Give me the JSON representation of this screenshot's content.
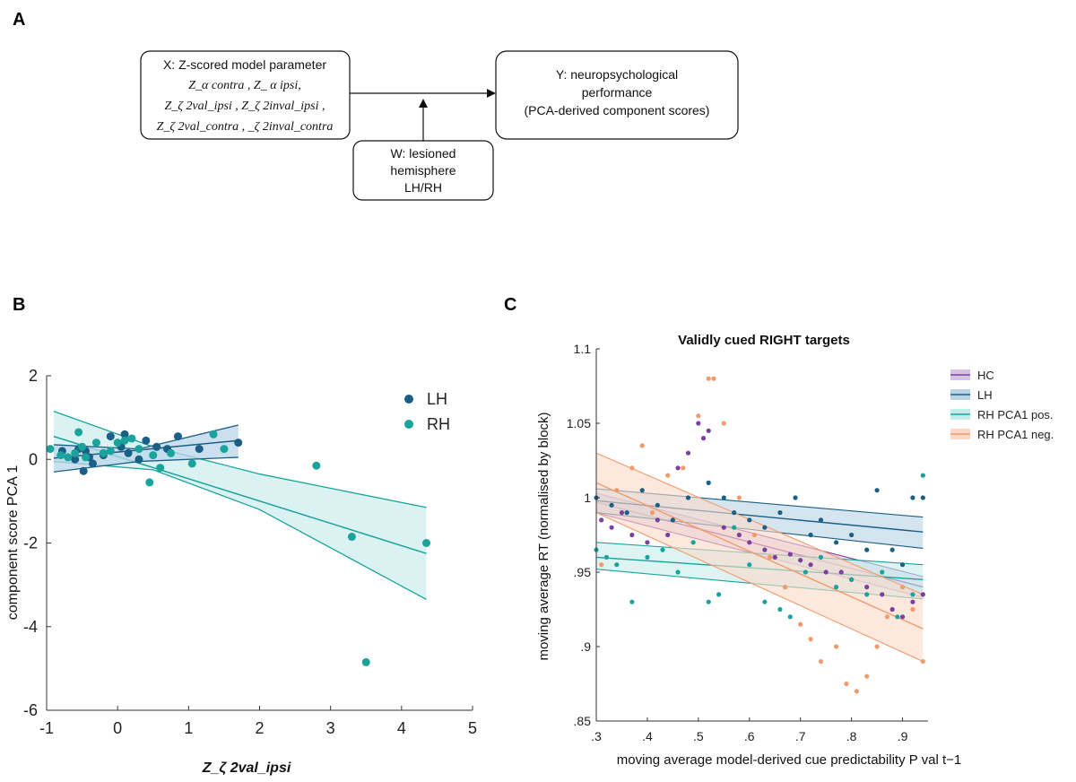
{
  "panel_labels": [
    "A",
    "B",
    "C"
  ],
  "diagram": {
    "box_x": {
      "line1": "X: Z-scored model parameter",
      "line2": "Z_α contra , Z_ α ipsi,",
      "line3": "Z_ζ 2val_ipsi , Z_ζ 2inval_ipsi ,",
      "line4": "Z_ζ 2val_contra , _ζ 2inval_contra"
    },
    "box_y": {
      "line1": "Y: neuropsychological",
      "line2": "performance",
      "line3": "(PCA-derived component scores)"
    },
    "box_w": {
      "line1": "W: lesioned",
      "line2": "hemisphere",
      "line3": "LH/RH"
    }
  },
  "chart_data": [
    {
      "type": "scatter",
      "panel": "B",
      "title": "",
      "xlabel": "Z_ζ 2val_ipsi",
      "ylabel": "component score PCA 1",
      "xlim": [
        -1,
        5
      ],
      "ylim": [
        -6,
        2
      ],
      "xticks": [
        -1,
        0,
        1,
        2,
        3,
        4,
        5
      ],
      "yticks": [
        2,
        0,
        -2,
        -4,
        -6
      ],
      "xtick_labels": [
        "-1",
        "0",
        "1",
        "2",
        "3",
        "4",
        "5"
      ],
      "ytick_labels": [
        "2",
        "0",
        "-2",
        "-4",
        "-6"
      ],
      "grid": false,
      "legend_position": "top-right",
      "colors": {
        "LH": "#1b5e86",
        "RH": "#1aa39a",
        "LH_band": "#b9d6e8",
        "RH_band": "#cfeeed"
      },
      "series": [
        {
          "name": "LH",
          "x": [
            -0.78,
            -0.6,
            -0.55,
            -0.48,
            -0.45,
            -0.4,
            -0.35,
            -0.2,
            -0.1,
            0.05,
            0.1,
            0.15,
            0.3,
            0.4,
            0.55,
            0.7,
            0.85,
            1.15,
            1.7
          ],
          "y": [
            0.2,
            0.0,
            0.25,
            -0.28,
            0.2,
            0.05,
            -0.1,
            0.1,
            0.55,
            0.3,
            0.6,
            0.15,
            0.0,
            0.45,
            0.3,
            0.25,
            0.55,
            0.25,
            0.4
          ],
          "fit": {
            "x": [
              -0.9,
              1.7
            ],
            "y": [
              0.03,
              0.45
            ]
          },
          "band": {
            "x": [
              -0.9,
              0.3,
              1.7
            ],
            "upper": [
              0.35,
              0.25,
              0.82
            ],
            "lower": [
              -0.3,
              -0.05,
              0.05
            ]
          }
        },
        {
          "name": "RH",
          "x": [
            -0.95,
            -0.8,
            -0.7,
            -0.6,
            -0.55,
            -0.5,
            -0.45,
            -0.3,
            -0.2,
            -0.1,
            0.0,
            0.1,
            0.2,
            0.3,
            0.5,
            0.45,
            0.6,
            0.75,
            1.05,
            1.35,
            1.5,
            2.8,
            3.3,
            3.5,
            4.35
          ],
          "y": [
            0.25,
            0.1,
            0.05,
            0.15,
            0.65,
            0.3,
            0.05,
            0.4,
            0.15,
            0.2,
            0.4,
            0.45,
            0.5,
            0.25,
            0.1,
            -0.55,
            -0.2,
            0.15,
            -0.1,
            0.6,
            0.25,
            -0.15,
            -1.85,
            -4.85,
            -2.0
          ],
          "fit": {
            "x": [
              -0.9,
              4.35
            ],
            "y": [
              0.55,
              -2.25
            ]
          },
          "band": {
            "x": [
              -0.9,
              0.5,
              2.0,
              4.35
            ],
            "upper": [
              1.15,
              0.3,
              -0.35,
              -1.15
            ],
            "lower": [
              -0.05,
              -0.25,
              -1.2,
              -3.35
            ]
          }
        }
      ]
    },
    {
      "type": "scatter",
      "panel": "C",
      "title": "Validly cued RIGHT targets",
      "xlabel": "moving average model-derived cue predictability P val t−1",
      "ylabel": "moving average RT (normalised by block)",
      "xlim": [
        0.3,
        0.95
      ],
      "ylim": [
        0.85,
        1.1
      ],
      "xticks": [
        0.3,
        0.4,
        0.5,
        0.6,
        0.7,
        0.8,
        0.9
      ],
      "yticks": [
        1.1,
        1.05,
        1,
        0.95,
        0.9,
        0.85
      ],
      "xtick_labels": [
        ".3",
        ".4",
        ".5",
        ".6",
        ".7",
        ".8",
        ".9"
      ],
      "ytick_labels": [
        "1.1",
        "1.05",
        "1",
        ".95",
        ".9",
        ".85"
      ],
      "grid": false,
      "legend_position": "right",
      "series": [
        {
          "name": "HC",
          "color": "#7b3fa0",
          "band_color": "#d5c3e3",
          "x": [
            0.31,
            0.33,
            0.35,
            0.37,
            0.4,
            0.42,
            0.44,
            0.46,
            0.48,
            0.5,
            0.51,
            0.52,
            0.55,
            0.58,
            0.6,
            0.63,
            0.65,
            0.68,
            0.7,
            0.72,
            0.75,
            0.78,
            0.8,
            0.83,
            0.86,
            0.88,
            0.9,
            0.92,
            0.94
          ],
          "y": [
            0.985,
            0.98,
            0.99,
            0.975,
            0.97,
            0.985,
            0.975,
            1.02,
            1.03,
            1.05,
            1.04,
            1.045,
            0.98,
            0.975,
            0.97,
            0.965,
            0.96,
            0.962,
            0.958,
            0.955,
            0.95,
            0.95,
            0.945,
            0.94,
            0.935,
            0.925,
            0.92,
            0.93,
            0.935
          ],
          "fit": {
            "x": [
              0.3,
              0.94
            ],
            "y": [
              0.997,
              0.94
            ]
          },
          "band": {
            "upper": [
              1.003,
              0.947
            ],
            "lower": [
              0.99,
              0.933
            ]
          }
        },
        {
          "name": "LH",
          "color": "#1b5e86",
          "band_color": "#b9d3e6",
          "x": [
            0.3,
            0.33,
            0.36,
            0.39,
            0.42,
            0.45,
            0.48,
            0.52,
            0.55,
            0.57,
            0.6,
            0.63,
            0.66,
            0.69,
            0.72,
            0.74,
            0.77,
            0.8,
            0.83,
            0.85,
            0.88,
            0.9,
            0.92,
            0.94
          ],
          "y": [
            1.0,
            0.995,
            0.99,
            1.005,
            0.995,
            0.985,
            1.0,
            1.01,
            1.0,
            0.99,
            0.985,
            0.98,
            0.99,
            1.0,
            0.975,
            0.985,
            0.97,
            0.975,
            0.965,
            1.005,
            0.965,
            0.955,
            1.0,
            1.0
          ],
          "fit": {
            "x": [
              0.3,
              0.94
            ],
            "y": [
              0.998,
              0.977
            ]
          },
          "band": {
            "upper": [
              1.006,
              0.987
            ],
            "lower": [
              0.99,
              0.966
            ]
          }
        },
        {
          "name": "RH PCA1 pos.",
          "color": "#1aa39a",
          "band_color": "#c6ecea",
          "x": [
            0.3,
            0.32,
            0.34,
            0.37,
            0.4,
            0.43,
            0.46,
            0.49,
            0.52,
            0.54,
            0.57,
            0.6,
            0.63,
            0.66,
            0.68,
            0.71,
            0.74,
            0.77,
            0.8,
            0.83,
            0.86,
            0.89,
            0.92,
            0.94
          ],
          "y": [
            0.965,
            0.96,
            0.955,
            0.93,
            0.96,
            0.965,
            0.95,
            0.97,
            0.93,
            0.935,
            0.98,
            0.955,
            0.93,
            0.925,
            0.92,
            0.95,
            0.96,
            0.94,
            0.945,
            0.935,
            0.95,
            0.92,
            0.935,
            1.015
          ],
          "fit": {
            "x": [
              0.3,
              0.94
            ],
            "y": [
              0.96,
              0.945
            ]
          },
          "band": {
            "upper": [
              0.97,
              0.955
            ],
            "lower": [
              0.952,
              0.932
            ]
          }
        },
        {
          "name": "RH PCA1 neg.",
          "color": "#f39a6b",
          "band_color": "#fbd9c8",
          "x": [
            0.31,
            0.34,
            0.37,
            0.39,
            0.41,
            0.44,
            0.47,
            0.5,
            0.52,
            0.53,
            0.55,
            0.58,
            0.61,
            0.64,
            0.67,
            0.7,
            0.72,
            0.74,
            0.77,
            0.79,
            0.81,
            0.83,
            0.85,
            0.87,
            0.9,
            0.92,
            0.94
          ],
          "y": [
            0.955,
            1.005,
            1.02,
            1.035,
            0.99,
            1.015,
            1.02,
            1.055,
            1.08,
            1.08,
            1.05,
            1.0,
            0.975,
            0.96,
            0.94,
            0.915,
            0.905,
            0.89,
            0.9,
            0.875,
            0.87,
            0.88,
            0.9,
            0.92,
            0.94,
            0.925,
            0.89
          ],
          "fit": {
            "x": [
              0.3,
              0.94
            ],
            "y": [
              1.01,
              0.912
            ]
          },
          "band": {
            "upper": [
              1.03,
              0.935
            ],
            "lower": [
              0.99,
              0.89
            ]
          }
        }
      ]
    }
  ]
}
